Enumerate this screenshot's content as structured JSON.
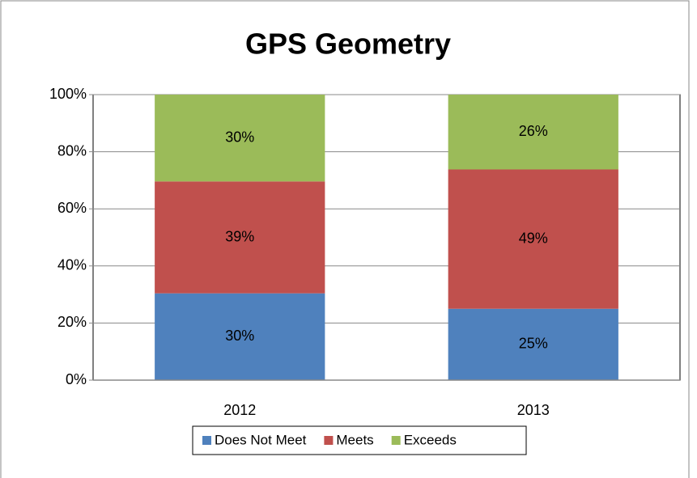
{
  "chart_data": {
    "type": "stacked_bar",
    "title": "GPS Geometry",
    "categories": [
      "2012",
      "2013"
    ],
    "series": [
      {
        "name": "Does Not Meet",
        "color": "#4f81bd",
        "values": [
          30.4,
          25
        ],
        "value_labels": [
          "30%",
          "25%"
        ]
      },
      {
        "name": "Meets",
        "color": "#c0504d",
        "values": [
          39.2,
          48.8
        ],
        "value_labels": [
          "39%",
          "49%"
        ]
      },
      {
        "name": "Exceeds",
        "color": "#9bbb59",
        "values": [
          30.4,
          26.2
        ],
        "value_labels": [
          "30%",
          "26%"
        ]
      }
    ],
    "ylim": [
      0,
      100
    ],
    "yticks": [
      {
        "value": 0,
        "label": "0%"
      },
      {
        "value": 20,
        "label": "20%"
      },
      {
        "value": 40,
        "label": "40%"
      },
      {
        "value": 60,
        "label": "60%"
      },
      {
        "value": 80,
        "label": "80%"
      },
      {
        "value": 100,
        "label": "100%"
      }
    ],
    "grid": true,
    "legend": "bottom"
  }
}
